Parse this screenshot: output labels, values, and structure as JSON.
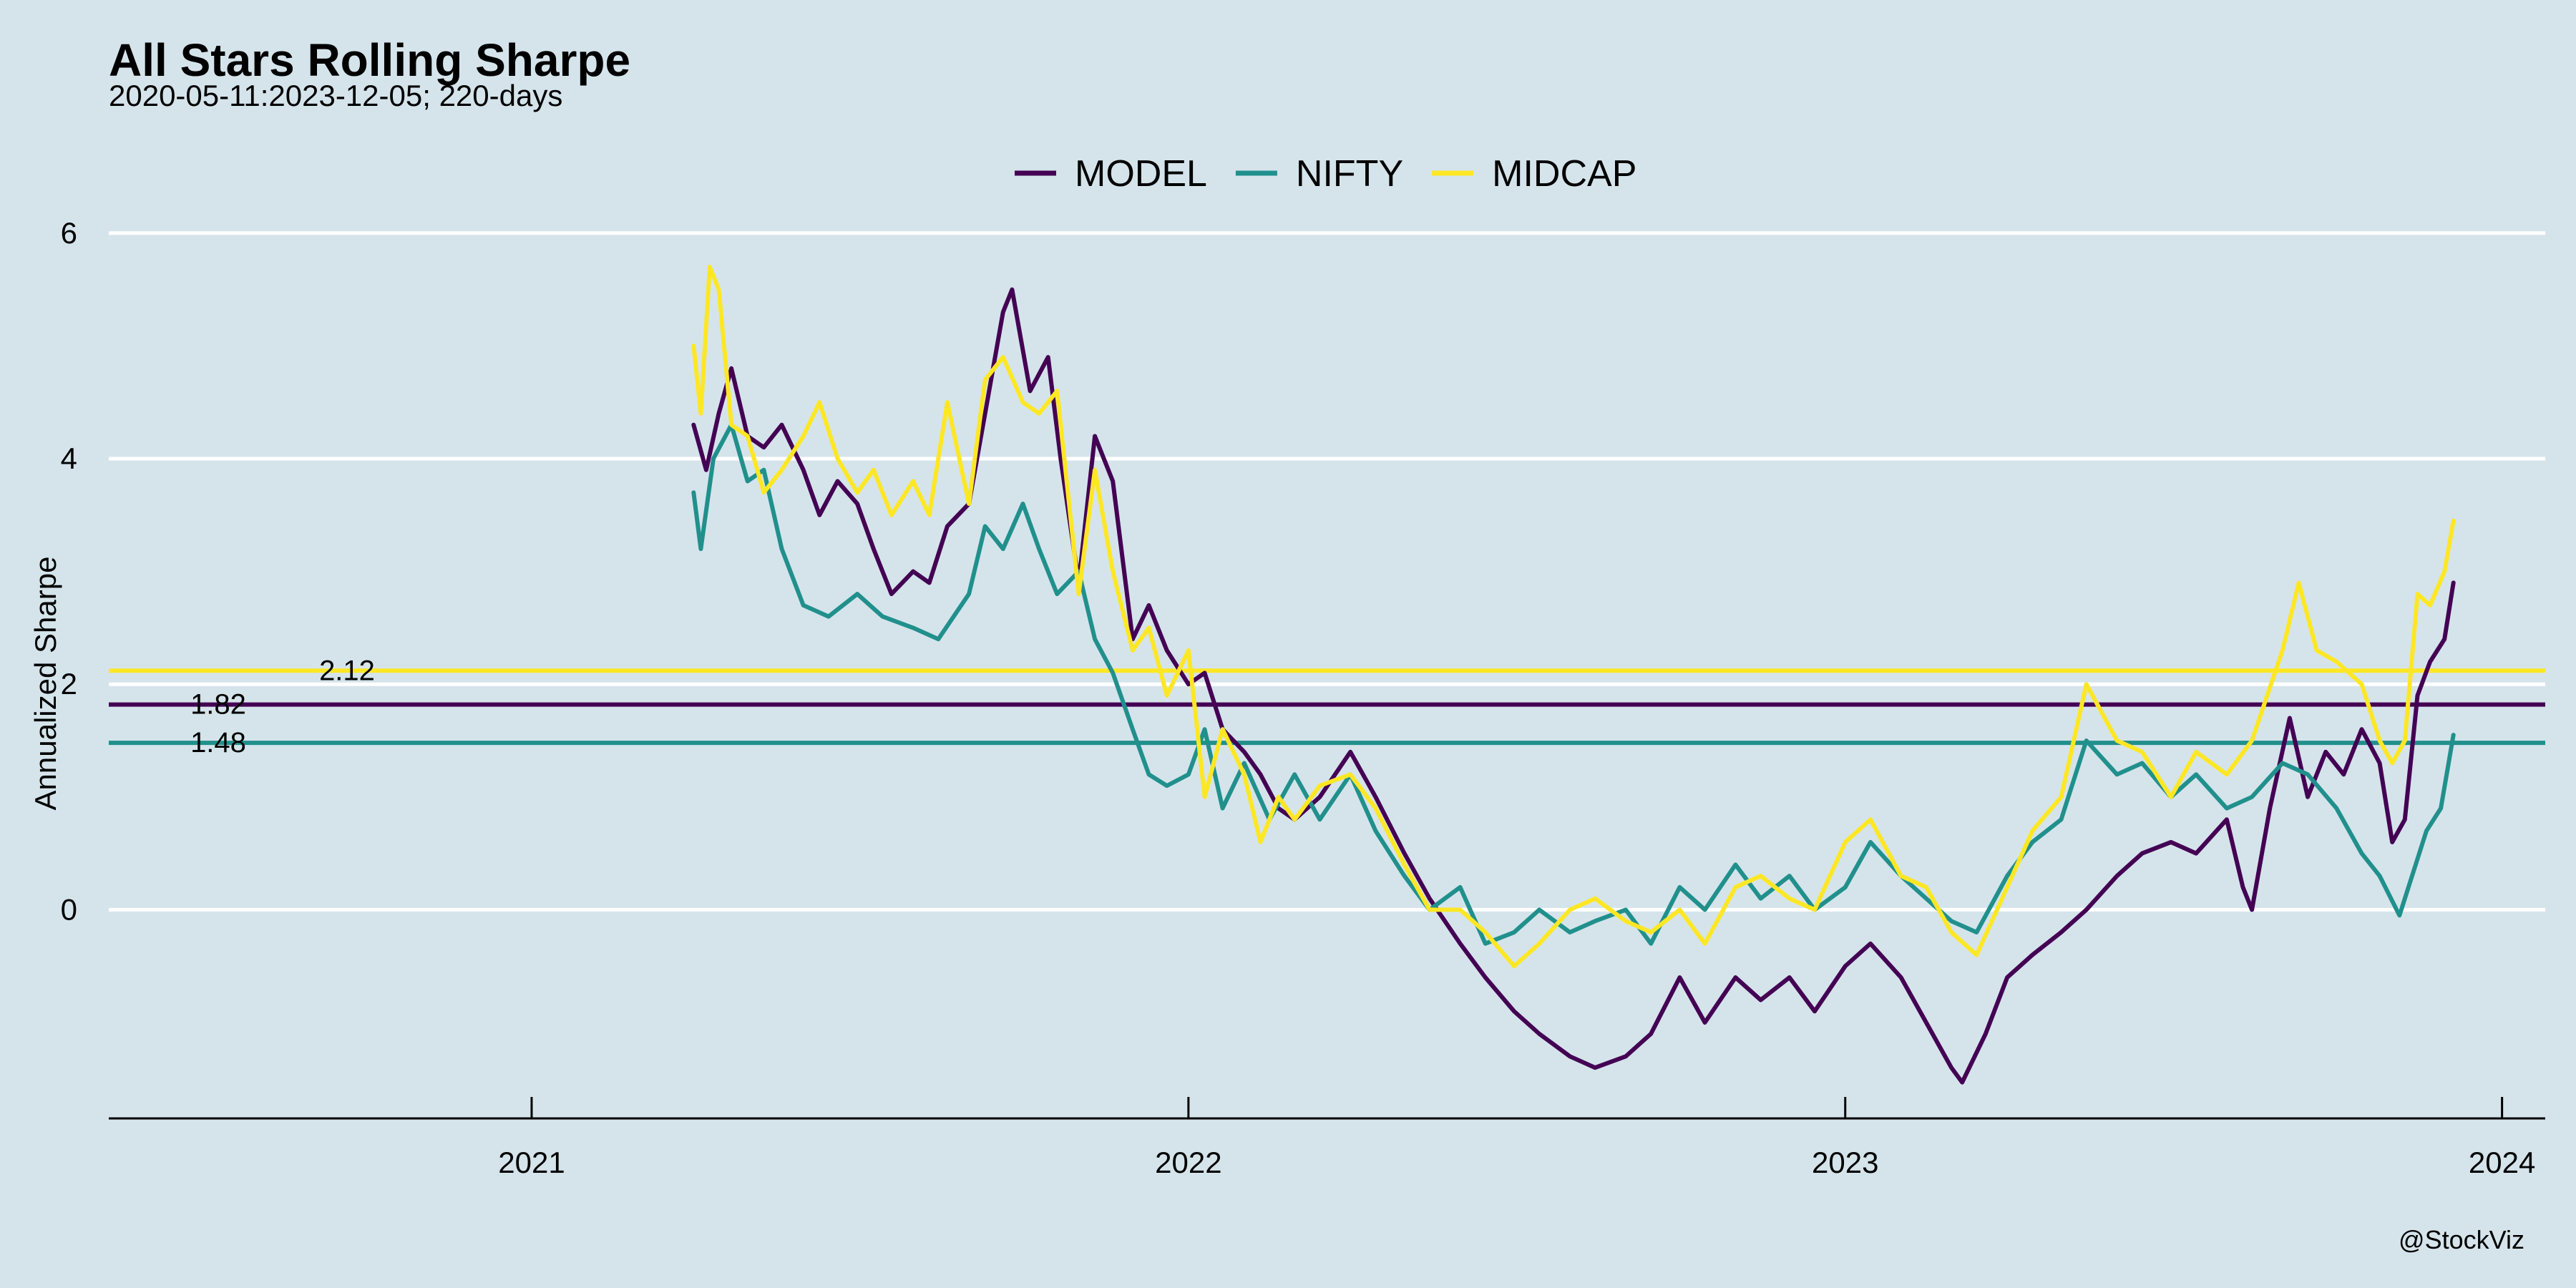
{
  "chart_data": {
    "type": "line",
    "title": "All Stars Rolling Sharpe",
    "subtitle": "2020-05-11:2023-12-05; 220-days",
    "xlabel": "",
    "ylabel": "Annualized Sharpe",
    "caption": "@StockViz",
    "x_range": [
      "2020-05-11",
      "2024-01-25"
    ],
    "ylim": [
      -1.85,
      6.1
    ],
    "x_ticks": [
      "2021",
      "2022",
      "2023",
      "2024"
    ],
    "y_ticks": [
      0,
      2,
      4,
      6
    ],
    "y_tick_labels": [
      "0",
      "2",
      "4",
      "6"
    ],
    "grid": "horizontal",
    "legend_position": "top",
    "background": "#d5e4eb",
    "series": [
      {
        "name": "MODEL",
        "color": "#440154",
        "mean": 1.82,
        "mean_label": "1.82",
        "points": [
          [
            "2021-04-01",
            4.3
          ],
          [
            "2021-04-08",
            3.9
          ],
          [
            "2021-04-15",
            4.4
          ],
          [
            "2021-04-22",
            4.8
          ],
          [
            "2021-05-01",
            4.2
          ],
          [
            "2021-05-10",
            4.1
          ],
          [
            "2021-05-20",
            4.3
          ],
          [
            "2021-06-01",
            3.9
          ],
          [
            "2021-06-10",
            3.5
          ],
          [
            "2021-06-20",
            3.8
          ],
          [
            "2021-07-01",
            3.6
          ],
          [
            "2021-07-10",
            3.2
          ],
          [
            "2021-07-20",
            2.8
          ],
          [
            "2021-08-01",
            3.0
          ],
          [
            "2021-08-10",
            2.9
          ],
          [
            "2021-08-20",
            3.4
          ],
          [
            "2021-09-01",
            3.6
          ],
          [
            "2021-09-10",
            4.4
          ],
          [
            "2021-09-20",
            5.3
          ],
          [
            "2021-09-25",
            5.5
          ],
          [
            "2021-10-05",
            4.6
          ],
          [
            "2021-10-15",
            4.9
          ],
          [
            "2021-10-22",
            4.0
          ],
          [
            "2021-11-01",
            2.9
          ],
          [
            "2021-11-10",
            4.2
          ],
          [
            "2021-11-20",
            3.8
          ],
          [
            "2021-12-01",
            2.4
          ],
          [
            "2021-12-10",
            2.7
          ],
          [
            "2021-12-20",
            2.3
          ],
          [
            "2022-01-01",
            2.0
          ],
          [
            "2022-01-10",
            2.1
          ],
          [
            "2022-01-20",
            1.6
          ],
          [
            "2022-02-01",
            1.4
          ],
          [
            "2022-02-10",
            1.2
          ],
          [
            "2022-02-20",
            0.9
          ],
          [
            "2022-03-01",
            0.8
          ],
          [
            "2022-03-15",
            1.0
          ],
          [
            "2022-04-01",
            1.4
          ],
          [
            "2022-04-15",
            1.0
          ],
          [
            "2022-05-01",
            0.5
          ],
          [
            "2022-05-15",
            0.1
          ],
          [
            "2022-06-01",
            -0.3
          ],
          [
            "2022-06-15",
            -0.6
          ],
          [
            "2022-07-01",
            -0.9
          ],
          [
            "2022-07-15",
            -1.1
          ],
          [
            "2022-08-01",
            -1.3
          ],
          [
            "2022-08-15",
            -1.4
          ],
          [
            "2022-09-01",
            -1.3
          ],
          [
            "2022-09-15",
            -1.1
          ],
          [
            "2022-10-01",
            -0.6
          ],
          [
            "2022-10-15",
            -1.0
          ],
          [
            "2022-11-01",
            -0.6
          ],
          [
            "2022-11-15",
            -0.8
          ],
          [
            "2022-12-01",
            -0.6
          ],
          [
            "2022-12-15",
            -0.9
          ],
          [
            "2023-01-01",
            -0.5
          ],
          [
            "2023-01-15",
            -0.3
          ],
          [
            "2023-02-01",
            -0.6
          ],
          [
            "2023-02-15",
            -1.0
          ],
          [
            "2023-03-01",
            -1.4
          ],
          [
            "2023-03-07",
            -1.53
          ],
          [
            "2023-03-20",
            -1.1
          ],
          [
            "2023-04-01",
            -0.6
          ],
          [
            "2023-04-15",
            -0.4
          ],
          [
            "2023-05-01",
            -0.2
          ],
          [
            "2023-05-15",
            0.0
          ],
          [
            "2023-06-01",
            0.3
          ],
          [
            "2023-06-15",
            0.5
          ],
          [
            "2023-07-01",
            0.6
          ],
          [
            "2023-07-15",
            0.5
          ],
          [
            "2023-08-01",
            0.8
          ],
          [
            "2023-08-10",
            0.2
          ],
          [
            "2023-08-15",
            0.0
          ],
          [
            "2023-08-25",
            0.9
          ],
          [
            "2023-09-05",
            1.7
          ],
          [
            "2023-09-15",
            1.0
          ],
          [
            "2023-09-25",
            1.4
          ],
          [
            "2023-10-05",
            1.2
          ],
          [
            "2023-10-15",
            1.6
          ],
          [
            "2023-10-25",
            1.3
          ],
          [
            "2023-11-01",
            0.6
          ],
          [
            "2023-11-08",
            0.8
          ],
          [
            "2023-11-15",
            1.9
          ],
          [
            "2023-11-22",
            2.2
          ],
          [
            "2023-11-30",
            2.4
          ],
          [
            "2023-12-05",
            2.9
          ]
        ]
      },
      {
        "name": "NIFTY",
        "color": "#21908c",
        "mean": 1.48,
        "mean_label": "1.48",
        "points": [
          [
            "2021-04-01",
            3.7
          ],
          [
            "2021-04-05",
            3.2
          ],
          [
            "2021-04-12",
            4.0
          ],
          [
            "2021-04-22",
            4.3
          ],
          [
            "2021-05-01",
            3.8
          ],
          [
            "2021-05-10",
            3.9
          ],
          [
            "2021-05-20",
            3.2
          ],
          [
            "2021-06-01",
            2.7
          ],
          [
            "2021-06-15",
            2.6
          ],
          [
            "2021-07-01",
            2.8
          ],
          [
            "2021-07-15",
            2.6
          ],
          [
            "2021-08-01",
            2.5
          ],
          [
            "2021-08-15",
            2.4
          ],
          [
            "2021-09-01",
            2.8
          ],
          [
            "2021-09-10",
            3.4
          ],
          [
            "2021-09-20",
            3.2
          ],
          [
            "2021-10-01",
            3.6
          ],
          [
            "2021-10-10",
            3.2
          ],
          [
            "2021-10-20",
            2.8
          ],
          [
            "2021-11-01",
            3.0
          ],
          [
            "2021-11-10",
            2.4
          ],
          [
            "2021-11-20",
            2.1
          ],
          [
            "2021-12-01",
            1.6
          ],
          [
            "2021-12-10",
            1.2
          ],
          [
            "2021-12-20",
            1.1
          ],
          [
            "2022-01-01",
            1.2
          ],
          [
            "2022-01-10",
            1.6
          ],
          [
            "2022-01-20",
            0.9
          ],
          [
            "2022-02-01",
            1.3
          ],
          [
            "2022-02-15",
            0.8
          ],
          [
            "2022-03-01",
            1.2
          ],
          [
            "2022-03-15",
            0.8
          ],
          [
            "2022-04-01",
            1.2
          ],
          [
            "2022-04-15",
            0.7
          ],
          [
            "2022-05-01",
            0.3
          ],
          [
            "2022-05-15",
            0.0
          ],
          [
            "2022-06-01",
            0.2
          ],
          [
            "2022-06-15",
            -0.3
          ],
          [
            "2022-07-01",
            -0.2
          ],
          [
            "2022-07-15",
            0.0
          ],
          [
            "2022-08-01",
            -0.2
          ],
          [
            "2022-08-15",
            -0.1
          ],
          [
            "2022-09-01",
            0.0
          ],
          [
            "2022-09-15",
            -0.3
          ],
          [
            "2022-10-01",
            0.2
          ],
          [
            "2022-10-15",
            0.0
          ],
          [
            "2022-11-01",
            0.4
          ],
          [
            "2022-11-15",
            0.1
          ],
          [
            "2022-12-01",
            0.3
          ],
          [
            "2022-12-15",
            0.0
          ],
          [
            "2023-01-01",
            0.2
          ],
          [
            "2023-01-15",
            0.6
          ],
          [
            "2023-02-01",
            0.3
          ],
          [
            "2023-02-15",
            0.1
          ],
          [
            "2023-03-01",
            -0.1
          ],
          [
            "2023-03-15",
            -0.2
          ],
          [
            "2023-04-01",
            0.3
          ],
          [
            "2023-04-15",
            0.6
          ],
          [
            "2023-05-01",
            0.8
          ],
          [
            "2023-05-15",
            1.5
          ],
          [
            "2023-06-01",
            1.2
          ],
          [
            "2023-06-15",
            1.3
          ],
          [
            "2023-07-01",
            1.0
          ],
          [
            "2023-07-15",
            1.2
          ],
          [
            "2023-08-01",
            0.9
          ],
          [
            "2023-08-15",
            1.0
          ],
          [
            "2023-09-01",
            1.3
          ],
          [
            "2023-09-15",
            1.2
          ],
          [
            "2023-10-01",
            0.9
          ],
          [
            "2023-10-15",
            0.5
          ],
          [
            "2023-10-25",
            0.3
          ],
          [
            "2023-11-05",
            -0.05
          ],
          [
            "2023-11-12",
            0.3
          ],
          [
            "2023-11-20",
            0.7
          ],
          [
            "2023-11-28",
            0.9
          ],
          [
            "2023-12-05",
            1.55
          ]
        ]
      },
      {
        "name": "MIDCAP",
        "color": "#fde725",
        "mean": 2.12,
        "mean_label": "2.12",
        "points": [
          [
            "2021-04-01",
            5.0
          ],
          [
            "2021-04-05",
            4.4
          ],
          [
            "2021-04-10",
            5.7
          ],
          [
            "2021-04-15",
            5.5
          ],
          [
            "2021-04-22",
            4.3
          ],
          [
            "2021-05-01",
            4.2
          ],
          [
            "2021-05-10",
            3.7
          ],
          [
            "2021-05-20",
            3.9
          ],
          [
            "2021-06-01",
            4.2
          ],
          [
            "2021-06-10",
            4.5
          ],
          [
            "2021-06-20",
            4.0
          ],
          [
            "2021-07-01",
            3.7
          ],
          [
            "2021-07-10",
            3.9
          ],
          [
            "2021-07-20",
            3.5
          ],
          [
            "2021-08-01",
            3.8
          ],
          [
            "2021-08-10",
            3.5
          ],
          [
            "2021-08-20",
            4.5
          ],
          [
            "2021-09-01",
            3.6
          ],
          [
            "2021-09-10",
            4.7
          ],
          [
            "2021-09-20",
            4.9
          ],
          [
            "2021-10-01",
            4.5
          ],
          [
            "2021-10-10",
            4.4
          ],
          [
            "2021-10-20",
            4.6
          ],
          [
            "2021-11-01",
            2.8
          ],
          [
            "2021-11-10",
            3.9
          ],
          [
            "2021-11-20",
            3.0
          ],
          [
            "2021-12-01",
            2.3
          ],
          [
            "2021-12-10",
            2.5
          ],
          [
            "2021-12-20",
            1.9
          ],
          [
            "2022-01-01",
            2.3
          ],
          [
            "2022-01-10",
            1.0
          ],
          [
            "2022-01-20",
            1.6
          ],
          [
            "2022-02-01",
            1.2
          ],
          [
            "2022-02-10",
            0.6
          ],
          [
            "2022-02-20",
            1.0
          ],
          [
            "2022-03-01",
            0.8
          ],
          [
            "2022-03-15",
            1.1
          ],
          [
            "2022-04-01",
            1.2
          ],
          [
            "2022-04-15",
            0.9
          ],
          [
            "2022-05-01",
            0.4
          ],
          [
            "2022-05-15",
            0.0
          ],
          [
            "2022-06-01",
            0.0
          ],
          [
            "2022-06-15",
            -0.2
          ],
          [
            "2022-07-01",
            -0.5
          ],
          [
            "2022-07-15",
            -0.3
          ],
          [
            "2022-08-01",
            0.0
          ],
          [
            "2022-08-15",
            0.1
          ],
          [
            "2022-09-01",
            -0.1
          ],
          [
            "2022-09-15",
            -0.2
          ],
          [
            "2022-10-01",
            0.0
          ],
          [
            "2022-10-15",
            -0.3
          ],
          [
            "2022-11-01",
            0.2
          ],
          [
            "2022-11-15",
            0.3
          ],
          [
            "2022-12-01",
            0.1
          ],
          [
            "2022-12-15",
            0.0
          ],
          [
            "2023-01-01",
            0.6
          ],
          [
            "2023-01-15",
            0.8
          ],
          [
            "2023-02-01",
            0.3
          ],
          [
            "2023-02-15",
            0.2
          ],
          [
            "2023-03-01",
            -0.2
          ],
          [
            "2023-03-15",
            -0.4
          ],
          [
            "2023-04-01",
            0.2
          ],
          [
            "2023-04-15",
            0.7
          ],
          [
            "2023-05-01",
            1.0
          ],
          [
            "2023-05-15",
            2.0
          ],
          [
            "2023-06-01",
            1.5
          ],
          [
            "2023-06-15",
            1.4
          ],
          [
            "2023-07-01",
            1.0
          ],
          [
            "2023-07-15",
            1.4
          ],
          [
            "2023-08-01",
            1.2
          ],
          [
            "2023-08-15",
            1.5
          ],
          [
            "2023-09-01",
            2.3
          ],
          [
            "2023-09-10",
            2.9
          ],
          [
            "2023-09-20",
            2.3
          ],
          [
            "2023-10-01",
            2.2
          ],
          [
            "2023-10-15",
            2.0
          ],
          [
            "2023-10-25",
            1.5
          ],
          [
            "2023-11-01",
            1.3
          ],
          [
            "2023-11-08",
            1.5
          ],
          [
            "2023-11-15",
            2.8
          ],
          [
            "2023-11-22",
            2.7
          ],
          [
            "2023-11-30",
            3.0
          ],
          [
            "2023-12-05",
            3.45
          ]
        ]
      }
    ]
  }
}
